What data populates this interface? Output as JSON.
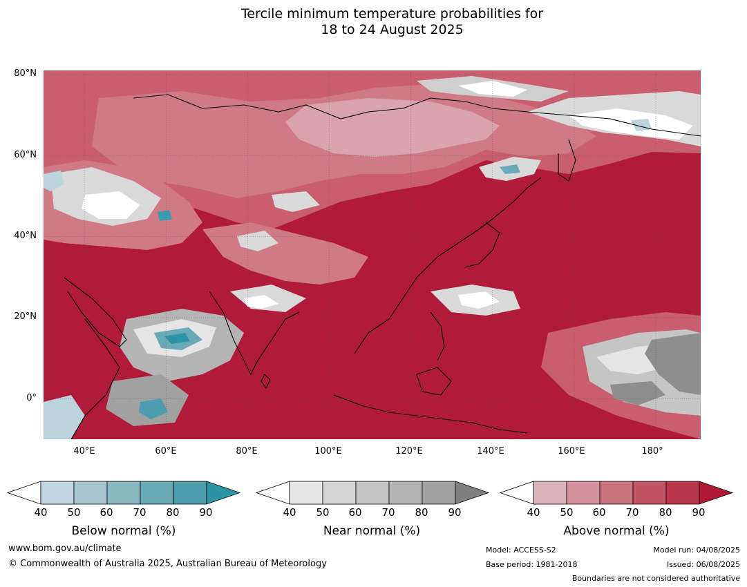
{
  "title": {
    "line1": "Tercile minimum temperature probabilities for",
    "line2": "18 to 24 August 2025"
  },
  "map": {
    "lat_labels": [
      "80°N",
      "60°N",
      "40°N",
      "20°N",
      "0°"
    ],
    "lon_labels": [
      "40°E",
      "60°E",
      "80°E",
      "100°E",
      "120°E",
      "140°E",
      "160°E",
      "180°"
    ],
    "extent": {
      "lon_min": 30,
      "lon_max": 191,
      "lat_min": -10,
      "lat_max": 81
    },
    "dominant_category": "Above normal",
    "colors": {
      "above_90": "#b01a3b",
      "above_80": "#bf3a54",
      "above_70": "#c85e70",
      "above_60": "#d07a88",
      "above_50": "#d9a3ae",
      "near": "#d9d9d9",
      "near_dark": "#8e8e8e",
      "below_light": "#bcd5dc",
      "below_dark": "#3a9bae"
    }
  },
  "legends": [
    {
      "title": "Below normal (%)",
      "ticks": [
        "40",
        "50",
        "60",
        "70",
        "80",
        "90"
      ],
      "colors": [
        "#ffffff",
        "#c0d5dd",
        "#a7c6cd",
        "#89b7c2",
        "#6aaab6",
        "#4c9eae",
        "#2f93a6"
      ]
    },
    {
      "title": "Near normal (%)",
      "ticks": [
        "40",
        "50",
        "60",
        "70",
        "80",
        "90"
      ],
      "colors": [
        "#ffffff",
        "#e5e5e5",
        "#d5d5d5",
        "#c5c5c5",
        "#b4b4b4",
        "#a1a1a1",
        "#7f7f7f"
      ]
    },
    {
      "title": "Above normal (%)",
      "ticks": [
        "40",
        "50",
        "60",
        "70",
        "80",
        "90"
      ],
      "colors": [
        "#ffffff",
        "#dbb2b9",
        "#d3929c",
        "#c97480",
        "#c05565",
        "#b8374b",
        "#ae1a35"
      ]
    }
  ],
  "footer": {
    "website": "www.bom.gov.au/climate",
    "copyright": "© Commonwealth of Australia 2025, Australian Bureau of Meteorology",
    "model": "Model: ACCESS-S2",
    "base_period": "Base period: 1981-2018",
    "model_run": "Model run: 04/08/2025",
    "issued": "Issued: 06/08/2025",
    "disclaimer": "Boundaries are not considered authoritative"
  }
}
